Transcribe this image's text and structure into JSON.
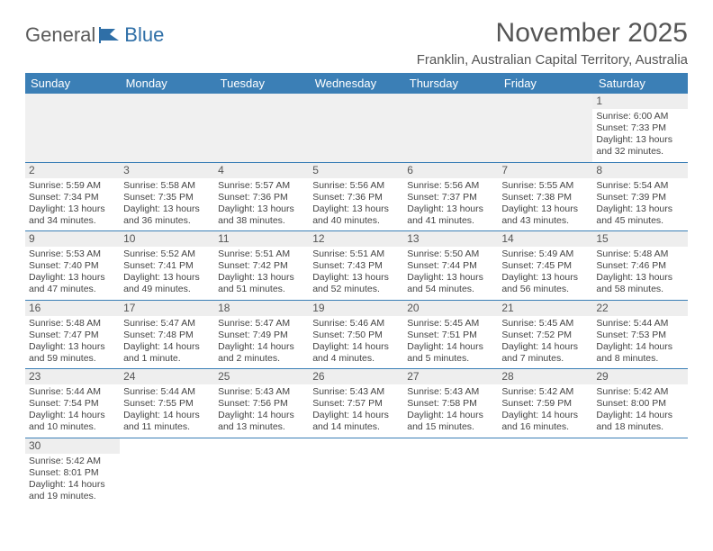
{
  "logo": {
    "word1": "General",
    "word2": "Blue"
  },
  "title": "November 2025",
  "location": "Franklin, Australian Capital Territory, Australia",
  "colors": {
    "header_bg": "#3b7fb6",
    "header_text": "#ffffff",
    "body_text": "#444444",
    "daynum_bg": "#eeeeee",
    "empty_bg": "#f0f0f0",
    "rule": "#3b7fb6",
    "logo_gray": "#5a5a5a",
    "logo_blue": "#2f6fa7"
  },
  "weekdays": [
    "Sunday",
    "Monday",
    "Tuesday",
    "Wednesday",
    "Thursday",
    "Friday",
    "Saturday"
  ],
  "weeks": [
    [
      null,
      null,
      null,
      null,
      null,
      null,
      {
        "n": "1",
        "sr": "Sunrise: 6:00 AM",
        "ss": "Sunset: 7:33 PM",
        "dl": "Daylight: 13 hours and 32 minutes."
      }
    ],
    [
      {
        "n": "2",
        "sr": "Sunrise: 5:59 AM",
        "ss": "Sunset: 7:34 PM",
        "dl": "Daylight: 13 hours and 34 minutes."
      },
      {
        "n": "3",
        "sr": "Sunrise: 5:58 AM",
        "ss": "Sunset: 7:35 PM",
        "dl": "Daylight: 13 hours and 36 minutes."
      },
      {
        "n": "4",
        "sr": "Sunrise: 5:57 AM",
        "ss": "Sunset: 7:36 PM",
        "dl": "Daylight: 13 hours and 38 minutes."
      },
      {
        "n": "5",
        "sr": "Sunrise: 5:56 AM",
        "ss": "Sunset: 7:36 PM",
        "dl": "Daylight: 13 hours and 40 minutes."
      },
      {
        "n": "6",
        "sr": "Sunrise: 5:56 AM",
        "ss": "Sunset: 7:37 PM",
        "dl": "Daylight: 13 hours and 41 minutes."
      },
      {
        "n": "7",
        "sr": "Sunrise: 5:55 AM",
        "ss": "Sunset: 7:38 PM",
        "dl": "Daylight: 13 hours and 43 minutes."
      },
      {
        "n": "8",
        "sr": "Sunrise: 5:54 AM",
        "ss": "Sunset: 7:39 PM",
        "dl": "Daylight: 13 hours and 45 minutes."
      }
    ],
    [
      {
        "n": "9",
        "sr": "Sunrise: 5:53 AM",
        "ss": "Sunset: 7:40 PM",
        "dl": "Daylight: 13 hours and 47 minutes."
      },
      {
        "n": "10",
        "sr": "Sunrise: 5:52 AM",
        "ss": "Sunset: 7:41 PM",
        "dl": "Daylight: 13 hours and 49 minutes."
      },
      {
        "n": "11",
        "sr": "Sunrise: 5:51 AM",
        "ss": "Sunset: 7:42 PM",
        "dl": "Daylight: 13 hours and 51 minutes."
      },
      {
        "n": "12",
        "sr": "Sunrise: 5:51 AM",
        "ss": "Sunset: 7:43 PM",
        "dl": "Daylight: 13 hours and 52 minutes."
      },
      {
        "n": "13",
        "sr": "Sunrise: 5:50 AM",
        "ss": "Sunset: 7:44 PM",
        "dl": "Daylight: 13 hours and 54 minutes."
      },
      {
        "n": "14",
        "sr": "Sunrise: 5:49 AM",
        "ss": "Sunset: 7:45 PM",
        "dl": "Daylight: 13 hours and 56 minutes."
      },
      {
        "n": "15",
        "sr": "Sunrise: 5:48 AM",
        "ss": "Sunset: 7:46 PM",
        "dl": "Daylight: 13 hours and 58 minutes."
      }
    ],
    [
      {
        "n": "16",
        "sr": "Sunrise: 5:48 AM",
        "ss": "Sunset: 7:47 PM",
        "dl": "Daylight: 13 hours and 59 minutes."
      },
      {
        "n": "17",
        "sr": "Sunrise: 5:47 AM",
        "ss": "Sunset: 7:48 PM",
        "dl": "Daylight: 14 hours and 1 minute."
      },
      {
        "n": "18",
        "sr": "Sunrise: 5:47 AM",
        "ss": "Sunset: 7:49 PM",
        "dl": "Daylight: 14 hours and 2 minutes."
      },
      {
        "n": "19",
        "sr": "Sunrise: 5:46 AM",
        "ss": "Sunset: 7:50 PM",
        "dl": "Daylight: 14 hours and 4 minutes."
      },
      {
        "n": "20",
        "sr": "Sunrise: 5:45 AM",
        "ss": "Sunset: 7:51 PM",
        "dl": "Daylight: 14 hours and 5 minutes."
      },
      {
        "n": "21",
        "sr": "Sunrise: 5:45 AM",
        "ss": "Sunset: 7:52 PM",
        "dl": "Daylight: 14 hours and 7 minutes."
      },
      {
        "n": "22",
        "sr": "Sunrise: 5:44 AM",
        "ss": "Sunset: 7:53 PM",
        "dl": "Daylight: 14 hours and 8 minutes."
      }
    ],
    [
      {
        "n": "23",
        "sr": "Sunrise: 5:44 AM",
        "ss": "Sunset: 7:54 PM",
        "dl": "Daylight: 14 hours and 10 minutes."
      },
      {
        "n": "24",
        "sr": "Sunrise: 5:44 AM",
        "ss": "Sunset: 7:55 PM",
        "dl": "Daylight: 14 hours and 11 minutes."
      },
      {
        "n": "25",
        "sr": "Sunrise: 5:43 AM",
        "ss": "Sunset: 7:56 PM",
        "dl": "Daylight: 14 hours and 13 minutes."
      },
      {
        "n": "26",
        "sr": "Sunrise: 5:43 AM",
        "ss": "Sunset: 7:57 PM",
        "dl": "Daylight: 14 hours and 14 minutes."
      },
      {
        "n": "27",
        "sr": "Sunrise: 5:43 AM",
        "ss": "Sunset: 7:58 PM",
        "dl": "Daylight: 14 hours and 15 minutes."
      },
      {
        "n": "28",
        "sr": "Sunrise: 5:42 AM",
        "ss": "Sunset: 7:59 PM",
        "dl": "Daylight: 14 hours and 16 minutes."
      },
      {
        "n": "29",
        "sr": "Sunrise: 5:42 AM",
        "ss": "Sunset: 8:00 PM",
        "dl": "Daylight: 14 hours and 18 minutes."
      }
    ],
    [
      {
        "n": "30",
        "sr": "Sunrise: 5:42 AM",
        "ss": "Sunset: 8:01 PM",
        "dl": "Daylight: 14 hours and 19 minutes."
      },
      null,
      null,
      null,
      null,
      null,
      null
    ]
  ]
}
